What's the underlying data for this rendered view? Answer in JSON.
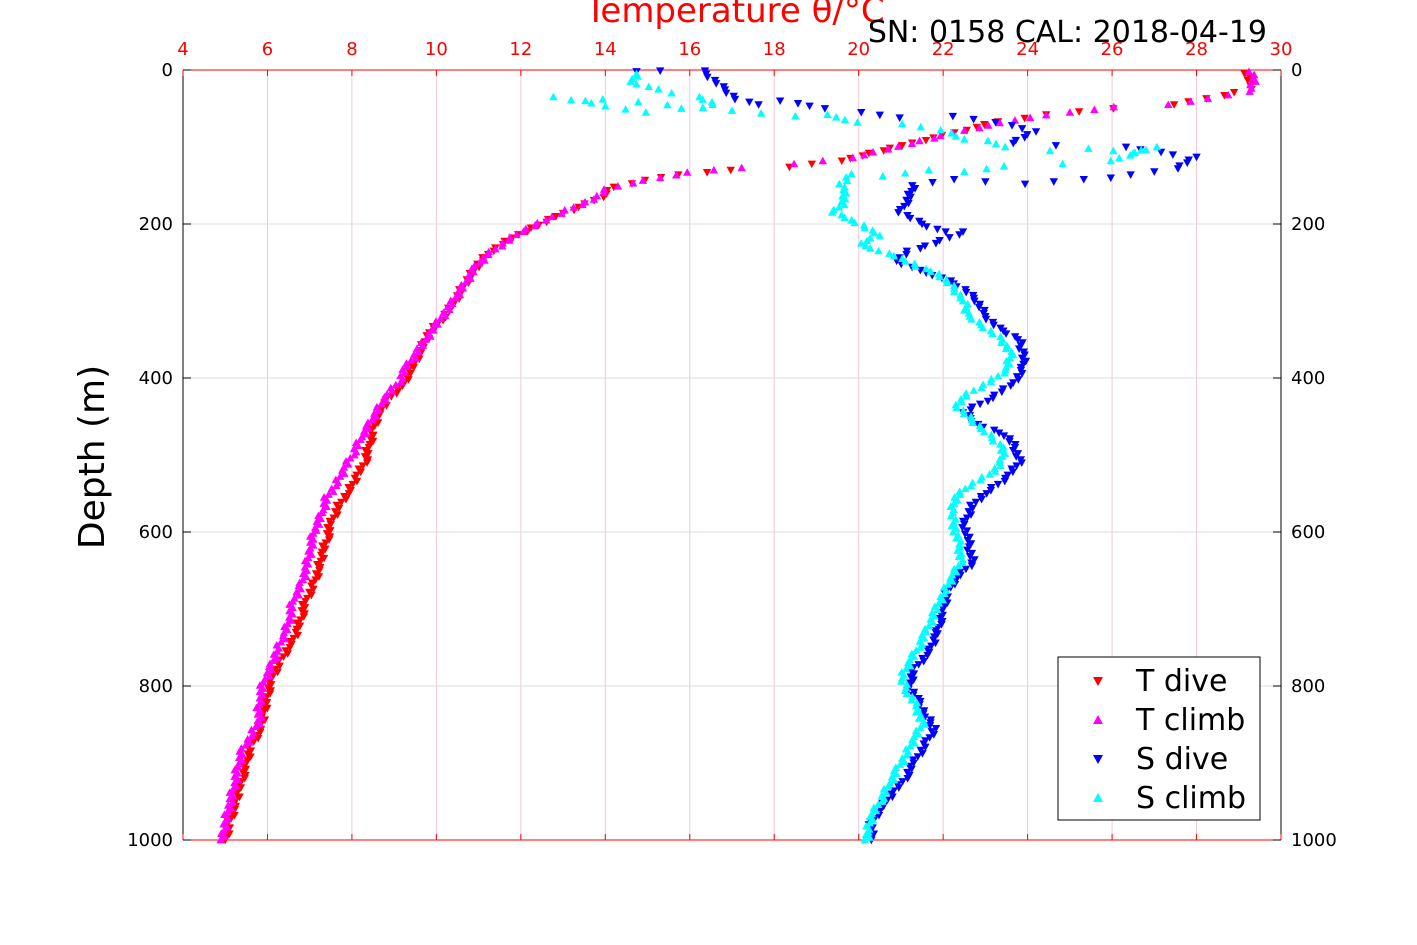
{
  "chart_data": {
    "type": "scatter",
    "title": "Temperature θ/°C",
    "subtitle": "SN: 0158  CAL: 2018-04-19",
    "ylabel": "Depth (m)",
    "xlim": [
      4,
      30
    ],
    "ylim": [
      1000,
      0
    ],
    "x_ticks": [
      4,
      6,
      8,
      10,
      12,
      14,
      16,
      18,
      20,
      22,
      24,
      26,
      28,
      30
    ],
    "y_ticks": [
      0,
      200,
      400,
      600,
      800,
      1000
    ],
    "legend_position": "bottom-right",
    "series": [
      {
        "name": "T dive",
        "color": "#ff0000",
        "marker": "triangle-down",
        "points": [
          [
            29.2,
            5
          ],
          [
            29.3,
            25
          ],
          [
            28.6,
            33
          ],
          [
            27.5,
            45
          ],
          [
            26.0,
            50
          ],
          [
            24.5,
            58
          ],
          [
            23.3,
            67
          ],
          [
            22.5,
            78
          ],
          [
            21.8,
            88
          ],
          [
            21.0,
            98
          ],
          [
            20.3,
            108
          ],
          [
            19.6,
            118
          ],
          [
            18.3,
            126
          ],
          [
            17.0,
            130
          ],
          [
            15.7,
            136
          ],
          [
            15.0,
            143
          ],
          [
            14.2,
            152
          ],
          [
            13.9,
            165
          ],
          [
            13.4,
            178
          ],
          [
            12.8,
            190
          ],
          [
            12.3,
            205
          ],
          [
            11.8,
            218
          ],
          [
            11.3,
            235
          ],
          [
            11.0,
            252
          ],
          [
            10.8,
            268
          ],
          [
            10.6,
            285
          ],
          [
            10.4,
            305
          ],
          [
            10.1,
            325
          ],
          [
            9.8,
            345
          ],
          [
            9.6,
            368
          ],
          [
            9.4,
            390
          ],
          [
            9.2,
            410
          ],
          [
            9.0,
            420
          ],
          [
            8.8,
            432
          ],
          [
            8.6,
            450
          ],
          [
            8.5,
            470
          ],
          [
            8.4,
            490
          ],
          [
            8.3,
            510
          ],
          [
            8.1,
            530
          ],
          [
            7.9,
            550
          ],
          [
            7.7,
            565
          ],
          [
            7.5,
            590
          ],
          [
            7.4,
            610
          ],
          [
            7.3,
            630
          ],
          [
            7.2,
            650
          ],
          [
            7.1,
            670
          ],
          [
            6.9,
            690
          ],
          [
            6.8,
            710
          ],
          [
            6.7,
            730
          ],
          [
            6.5,
            750
          ],
          [
            6.3,
            770
          ],
          [
            6.1,
            790
          ],
          [
            6.0,
            810
          ],
          [
            5.9,
            840
          ],
          [
            5.8,
            860
          ],
          [
            5.6,
            880
          ],
          [
            5.5,
            900
          ],
          [
            5.4,
            920
          ],
          [
            5.3,
            940
          ],
          [
            5.2,
            960
          ],
          [
            5.1,
            980
          ],
          [
            5.0,
            1000
          ]
        ]
      },
      {
        "name": "T climb",
        "color": "#ff00ff",
        "marker": "triangle-up",
        "points": [
          [
            29.3,
            2
          ],
          [
            29.4,
            15
          ],
          [
            29.2,
            28
          ],
          [
            28.3,
            37
          ],
          [
            27.3,
            45
          ],
          [
            26.1,
            48
          ],
          [
            25.0,
            55
          ],
          [
            24.0,
            62
          ],
          [
            23.1,
            72
          ],
          [
            22.2,
            82
          ],
          [
            21.5,
            92
          ],
          [
            20.7,
            103
          ],
          [
            19.8,
            114
          ],
          [
            18.5,
            122
          ],
          [
            17.2,
            127
          ],
          [
            16.0,
            133
          ],
          [
            15.3,
            140
          ],
          [
            14.6,
            147
          ],
          [
            14.0,
            155
          ],
          [
            13.7,
            168
          ],
          [
            13.1,
            182
          ],
          [
            12.6,
            195
          ],
          [
            12.0,
            210
          ],
          [
            11.6,
            225
          ],
          [
            11.2,
            240
          ],
          [
            10.9,
            258
          ],
          [
            10.7,
            275
          ],
          [
            10.5,
            292
          ],
          [
            10.2,
            315
          ],
          [
            9.9,
            338
          ],
          [
            9.6,
            362
          ],
          [
            9.3,
            385
          ],
          [
            9.1,
            405
          ],
          [
            8.8,
            425
          ],
          [
            8.6,
            442
          ],
          [
            8.4,
            462
          ],
          [
            8.2,
            480
          ],
          [
            8.0,
            500
          ],
          [
            7.8,
            520
          ],
          [
            7.6,
            540
          ],
          [
            7.4,
            555
          ],
          [
            7.3,
            575
          ],
          [
            7.1,
            598
          ],
          [
            7.0,
            625
          ],
          [
            6.9,
            650
          ],
          [
            6.8,
            670
          ],
          [
            6.6,
            690
          ],
          [
            6.5,
            715
          ],
          [
            6.4,
            735
          ],
          [
            6.2,
            755
          ],
          [
            6.1,
            775
          ],
          [
            5.9,
            795
          ],
          [
            5.8,
            820
          ],
          [
            5.8,
            845
          ],
          [
            5.6,
            865
          ],
          [
            5.4,
            885
          ],
          [
            5.3,
            905
          ],
          [
            5.2,
            930
          ],
          [
            5.1,
            955
          ],
          [
            5.0,
            975
          ],
          [
            4.95,
            1000
          ]
        ]
      },
      {
        "name": "S dive",
        "color": "#0000ff",
        "marker": "triangle-down",
        "points": [
          [
            14.8,
            2
          ],
          [
            15.3,
            1
          ],
          [
            16.3,
            1
          ],
          [
            17.1,
            38
          ],
          [
            17.6,
            45
          ],
          [
            18.2,
            40
          ],
          [
            19.2,
            50
          ],
          [
            20.0,
            55
          ],
          [
            21.0,
            62
          ],
          [
            22.2,
            60
          ],
          [
            23.3,
            68
          ],
          [
            24.2,
            80
          ],
          [
            23.6,
            95
          ],
          [
            24.7,
            98
          ],
          [
            26.3,
            100
          ],
          [
            27.5,
            110
          ],
          [
            28.0,
            113
          ],
          [
            27.5,
            128
          ],
          [
            26.0,
            140
          ],
          [
            25.3,
            142
          ],
          [
            24.0,
            148
          ],
          [
            23.0,
            145
          ],
          [
            22.2,
            142
          ],
          [
            21.3,
            150
          ],
          [
            21.2,
            165
          ],
          [
            21.0,
            185
          ],
          [
            21.5,
            200
          ],
          [
            22.0,
            210
          ],
          [
            22.5,
            210
          ],
          [
            21.8,
            225
          ],
          [
            21.2,
            235
          ],
          [
            20.9,
            248
          ],
          [
            21.4,
            260
          ],
          [
            22.0,
            270
          ],
          [
            22.5,
            285
          ],
          [
            22.8,
            300
          ],
          [
            23.0,
            320
          ],
          [
            23.3,
            335
          ],
          [
            23.8,
            350
          ],
          [
            23.9,
            370
          ],
          [
            23.9,
            390
          ],
          [
            23.6,
            410
          ],
          [
            23.0,
            430
          ],
          [
            22.5,
            445
          ],
          [
            22.8,
            460
          ],
          [
            23.5,
            475
          ],
          [
            23.7,
            490
          ],
          [
            23.8,
            510
          ],
          [
            23.5,
            530
          ],
          [
            23.0,
            550
          ],
          [
            22.7,
            565
          ],
          [
            22.5,
            590
          ],
          [
            22.6,
            615
          ],
          [
            22.7,
            640
          ],
          [
            22.3,
            660
          ],
          [
            22.1,
            680
          ],
          [
            22.0,
            700
          ],
          [
            21.9,
            720
          ],
          [
            21.8,
            740
          ],
          [
            21.6,
            760
          ],
          [
            21.3,
            780
          ],
          [
            21.2,
            800
          ],
          [
            21.4,
            820
          ],
          [
            21.6,
            840
          ],
          [
            21.8,
            855
          ],
          [
            21.6,
            875
          ],
          [
            21.3,
            900
          ],
          [
            21.1,
            920
          ],
          [
            20.8,
            940
          ],
          [
            20.5,
            960
          ],
          [
            20.3,
            980
          ],
          [
            20.3,
            1000
          ]
        ]
      },
      {
        "name": "S climb",
        "color": "#00ffff",
        "marker": "triangle-up",
        "points": [
          [
            14.8,
            5
          ],
          [
            14.6,
            15
          ],
          [
            15.2,
            25
          ],
          [
            15.6,
            30
          ],
          [
            16.2,
            35
          ],
          [
            16.6,
            45
          ],
          [
            15.8,
            50
          ],
          [
            14.9,
            55
          ],
          [
            12.8,
            35
          ],
          [
            13.5,
            40
          ],
          [
            14.0,
            38
          ],
          [
            18.5,
            60
          ],
          [
            19.2,
            58
          ],
          [
            20.0,
            68
          ],
          [
            21.0,
            70
          ],
          [
            22.0,
            78
          ],
          [
            22.5,
            90
          ],
          [
            23.0,
            92
          ],
          [
            23.5,
            100
          ],
          [
            24.5,
            105
          ],
          [
            25.5,
            102
          ],
          [
            26.5,
            108
          ],
          [
            27.0,
            100
          ],
          [
            26.0,
            118
          ],
          [
            24.8,
            122
          ],
          [
            23.5,
            125
          ],
          [
            22.5,
            132
          ],
          [
            21.6,
            130
          ],
          [
            20.6,
            138
          ],
          [
            19.8,
            135
          ],
          [
            19.6,
            148
          ],
          [
            19.7,
            160
          ],
          [
            19.6,
            175
          ],
          [
            19.4,
            185
          ],
          [
            19.8,
            195
          ],
          [
            20.2,
            205
          ],
          [
            20.5,
            215
          ],
          [
            20.0,
            225
          ],
          [
            20.5,
            235
          ],
          [
            21.0,
            245
          ],
          [
            21.4,
            255
          ],
          [
            21.9,
            265
          ],
          [
            22.2,
            280
          ],
          [
            22.5,
            300
          ],
          [
            22.6,
            320
          ],
          [
            23.0,
            335
          ],
          [
            23.4,
            350
          ],
          [
            23.6,
            370
          ],
          [
            23.5,
            390
          ],
          [
            23.1,
            405
          ],
          [
            22.6,
            420
          ],
          [
            22.3,
            435
          ],
          [
            22.6,
            450
          ],
          [
            23.0,
            470
          ],
          [
            23.4,
            490
          ],
          [
            23.4,
            510
          ],
          [
            23.1,
            525
          ],
          [
            22.6,
            540
          ],
          [
            22.3,
            555
          ],
          [
            22.2,
            575
          ],
          [
            22.3,
            600
          ],
          [
            22.4,
            620
          ],
          [
            22.4,
            640
          ],
          [
            22.2,
            660
          ],
          [
            22.0,
            680
          ],
          [
            21.8,
            705
          ],
          [
            21.6,
            730
          ],
          [
            21.4,
            750
          ],
          [
            21.2,
            770
          ],
          [
            21.0,
            790
          ],
          [
            21.2,
            810
          ],
          [
            21.4,
            830
          ],
          [
            21.5,
            850
          ],
          [
            21.3,
            870
          ],
          [
            21.1,
            890
          ],
          [
            20.9,
            910
          ],
          [
            20.7,
            930
          ],
          [
            20.5,
            950
          ],
          [
            20.3,
            970
          ],
          [
            20.2,
            990
          ],
          [
            20.2,
            1000
          ]
        ]
      }
    ]
  }
}
